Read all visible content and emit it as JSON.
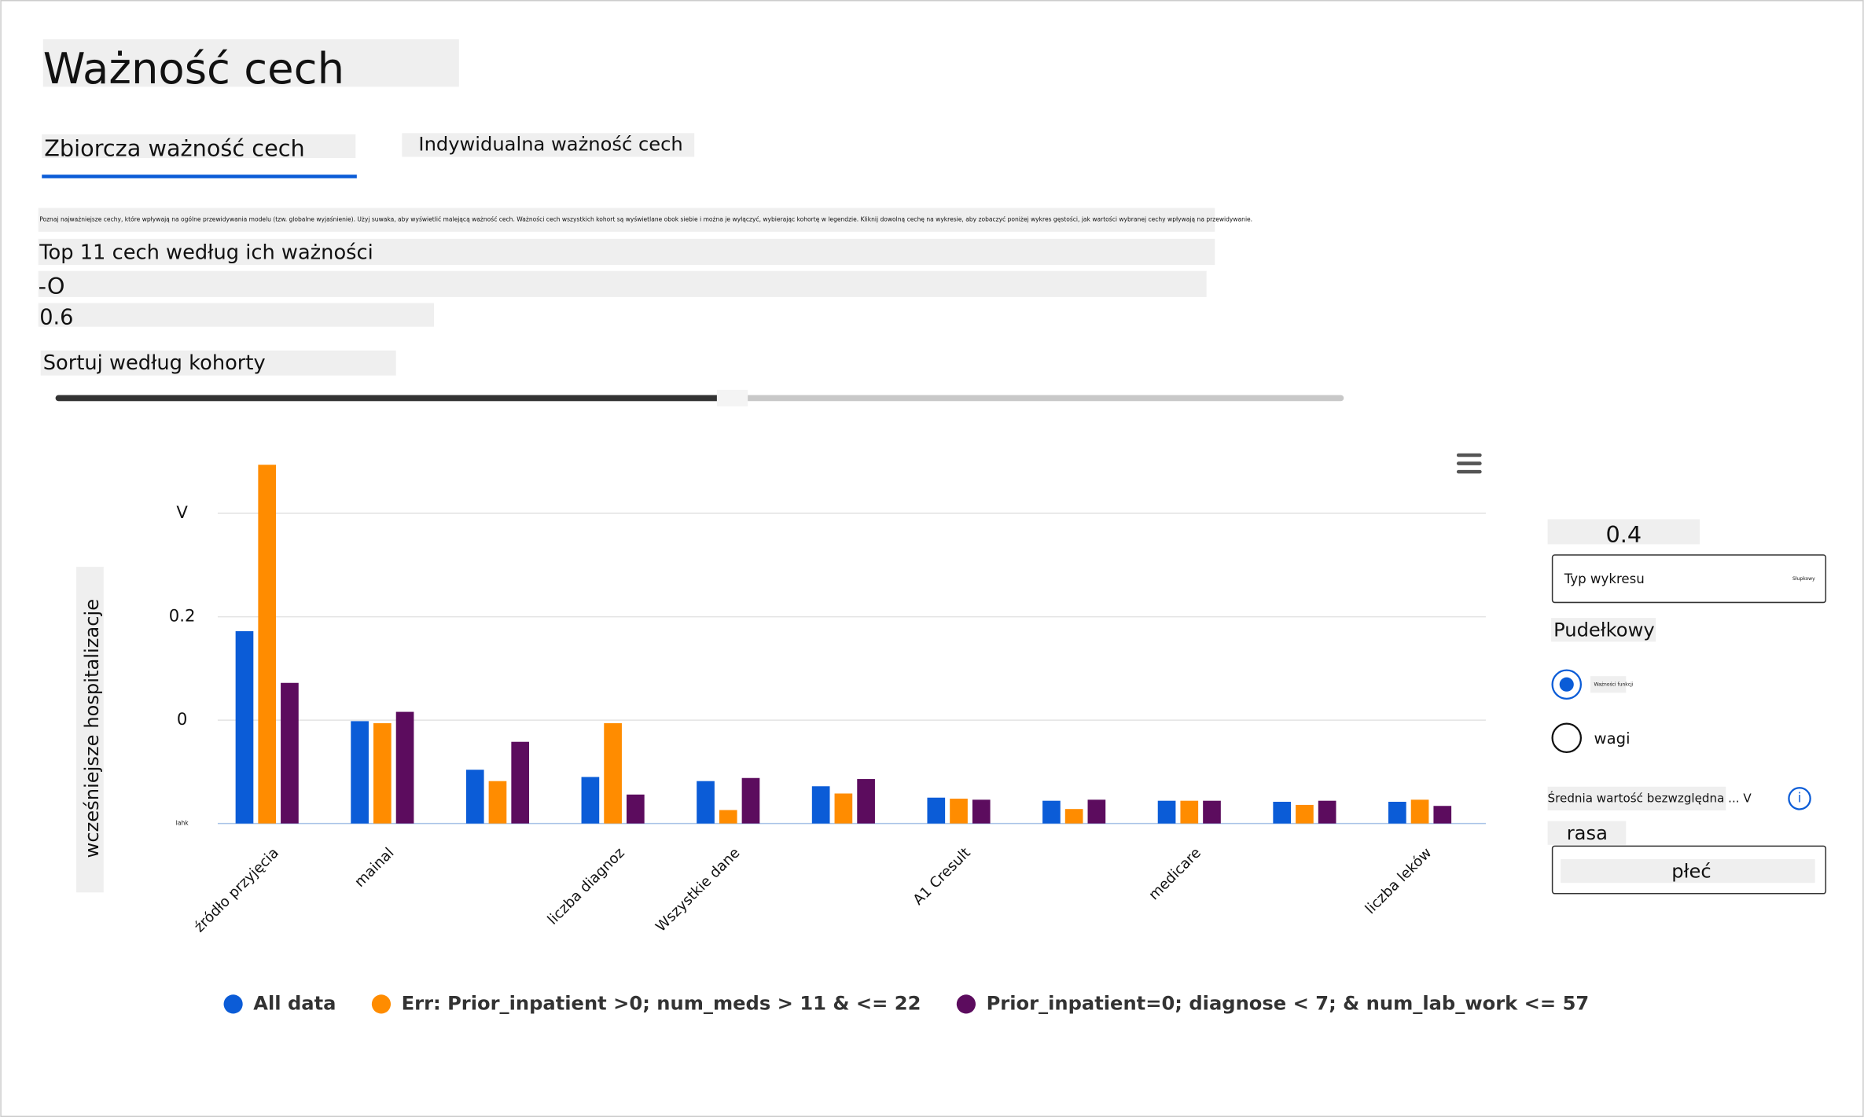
{
  "header": {
    "title": "Ważność cech"
  },
  "tabs": [
    "Zbiorcza ważność cech",
    "Indywidualna ważność cech"
  ],
  "description": "Poznaj najważniejsze cechy, które wpływają na ogólne przewidywania modelu (tzw. globalne wyjaśnienie). Użyj suwaka, aby wyświetlić malejącą ważność cech. Ważności cech wszystkich kohort są wyświetlane obok siebie i można je wyłączyć, wybierając kohortę w legendzie. Kliknij dowolną cechę na wykresie, aby zobaczyć poniżej wykres gęstości, jak wartości wybranej cechy wpływają na przewidywanie.",
  "top_features_label": "Top 11 cech według ich ważności",
  "slider_min_label": "-O",
  "slider_value_label": "0.6",
  "sort_label": "Sortuj według kohorty",
  "chart_data": {
    "type": "bar",
    "y_label": "wcześniejsze hospitalizacje",
    "categories": [
      "źródło przyjęcia",
      "mainal",
      null,
      "liczba diagnoz",
      "Wszystkie dane",
      null,
      "A1 Cresult",
      null,
      "medicare",
      null,
      "liczba leków"
    ],
    "series": [
      {
        "name": "All data",
        "color": "#0b5cd7",
        "values": [
          0.186,
          0.099,
          0.052,
          0.045,
          0.041,
          0.036,
          0.025,
          0.022,
          0.022,
          0.021,
          0.021
        ]
      },
      {
        "name": "Err: Prior_inpatient >0; num_meds > 11 & <= 22",
        "color": "#ff8c00",
        "values": [
          0.347,
          0.097,
          0.041,
          0.097,
          0.013,
          0.029,
          0.024,
          0.014,
          0.022,
          0.018,
          0.023
        ]
      },
      {
        "name": "Prior_inpatient=0; diagnose < 7; & num_lab_work <= 57",
        "color": "#5c0c5e",
        "values": [
          0.136,
          0.108,
          0.079,
          0.028,
          0.044,
          0.043,
          0.023,
          0.023,
          0.022,
          0.022,
          0.017
        ]
      }
    ],
    "ylim": [
      0,
      0.35
    ],
    "yticks": [
      {
        "value": 0,
        "label": "Iahk"
      },
      {
        "value": 0.1,
        "label": "0"
      },
      0.2,
      {
        "value": 0.3,
        "label": "V"
      }
    ],
    "grid": true,
    "legend": "bottom"
  },
  "side_panel": {
    "value_label": "0.4",
    "chart_type_label": "Typ wykresu",
    "chart_type_value": "Słupkowy",
    "box_option": "Pudełkowy",
    "radio_options": [
      "Ważności funkcji",
      "wagi"
    ],
    "aggregation": "Średnia wartość bezwzględna ... V",
    "group_label": "rasa",
    "group_value": "płeć"
  }
}
